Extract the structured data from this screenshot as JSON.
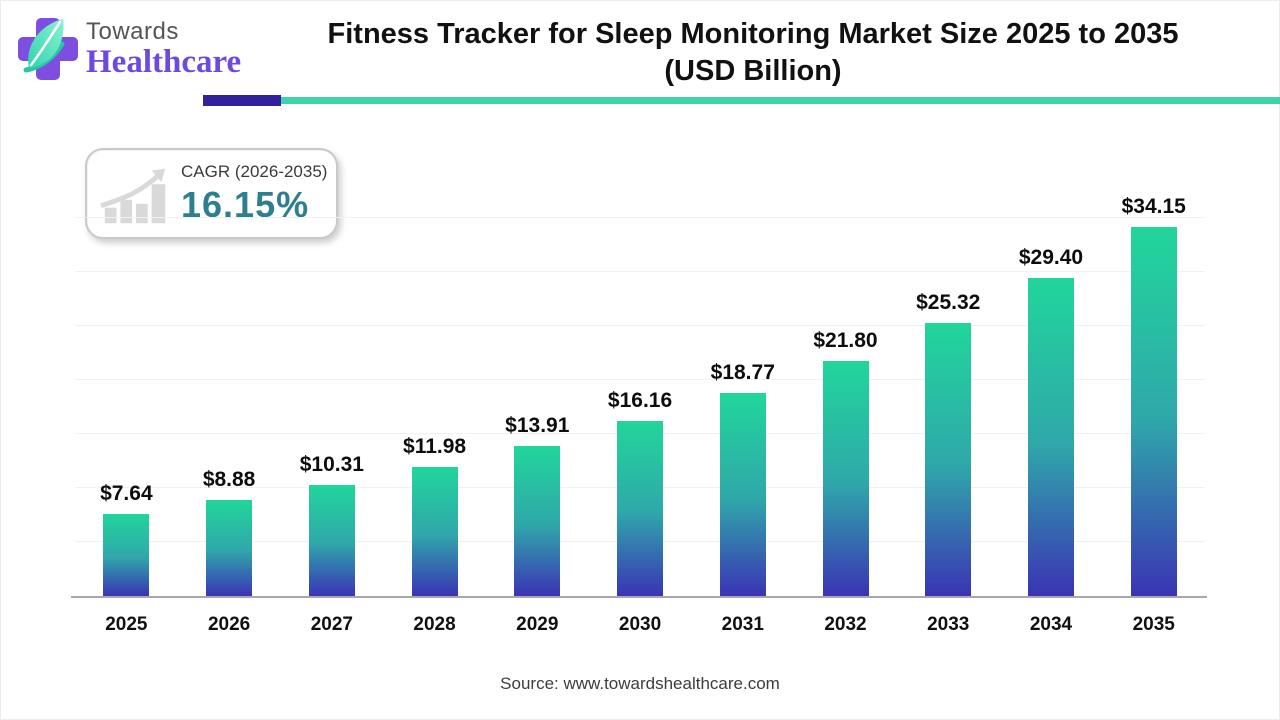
{
  "header": {
    "logo": {
      "brand_top": "Towards",
      "brand_bottom": "Healthcare"
    },
    "title_line1": "Fitness Tracker for Sleep Monitoring Market Size 2025 to 2035",
    "title_line2": "(USD Billion)",
    "underline_colors": {
      "purple": "#31219f",
      "teal": "#3dd3ad"
    }
  },
  "cagr_badge": {
    "label": "CAGR (2026-2035)",
    "value": "16.15%",
    "value_color": "#2d7f90"
  },
  "chart_data": {
    "type": "bar",
    "title": "Fitness Tracker for Sleep Monitoring Market Size 2025 to 2035 (USD Billion)",
    "categories": [
      "2025",
      "2026",
      "2027",
      "2028",
      "2029",
      "2030",
      "2031",
      "2032",
      "2033",
      "2034",
      "2035"
    ],
    "values": [
      7.64,
      8.88,
      10.31,
      11.98,
      13.91,
      16.16,
      18.77,
      21.8,
      25.32,
      29.4,
      34.15
    ],
    "value_prefix": "$",
    "xlabel": "",
    "ylabel": "",
    "ylim": [
      0,
      35
    ],
    "gridline_step": 5,
    "grid": "horizontal-faint",
    "legend": "none",
    "bar_gradient_top_to_bottom": [
      "#21d69b",
      "#2fa8aa",
      "#3a34b4"
    ]
  },
  "footer": {
    "source": "Source: www.towardshealthcare.com"
  }
}
